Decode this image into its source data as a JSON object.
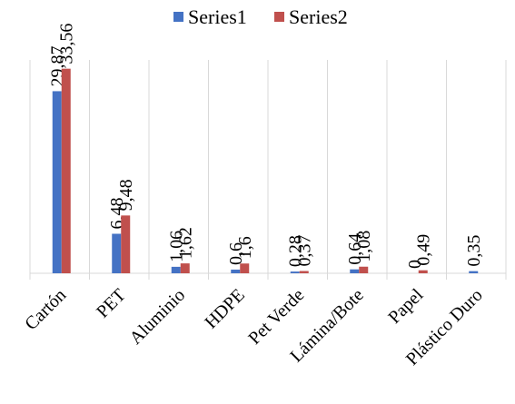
{
  "chart_data": {
    "type": "bar",
    "categories": [
      "Cartón",
      "PET",
      "Aluminio",
      "HDPE",
      "Pet Verde",
      "Lámina/Bote",
      "Papel",
      "Plástico Duro"
    ],
    "series": [
      {
        "name": "Series1",
        "color": "#4472C4",
        "values": [
          29.87,
          6.48,
          1.06,
          0.6,
          0.28,
          0.64,
          0,
          0.35
        ],
        "labels": [
          "29,87",
          "6,48",
          "1,06",
          "0,6",
          "0,28",
          "0,64",
          "0",
          "0,35"
        ]
      },
      {
        "name": "Series2",
        "color": "#C0504D",
        "values": [
          33.56,
          9.48,
          1.62,
          1.6,
          0.37,
          1.08,
          0.49,
          null
        ],
        "labels": [
          "33,56",
          "9,48",
          "1,62",
          "1,6",
          "0,37",
          "1,08",
          "0,49",
          ""
        ]
      }
    ],
    "title": "",
    "xlabel": "",
    "ylabel": "",
    "ylim": [
      0,
      35
    ],
    "grid": false,
    "category_separators": true,
    "legend_position": "top-center",
    "tick_label_rotation": -45,
    "data_label_rotation": -90
  }
}
